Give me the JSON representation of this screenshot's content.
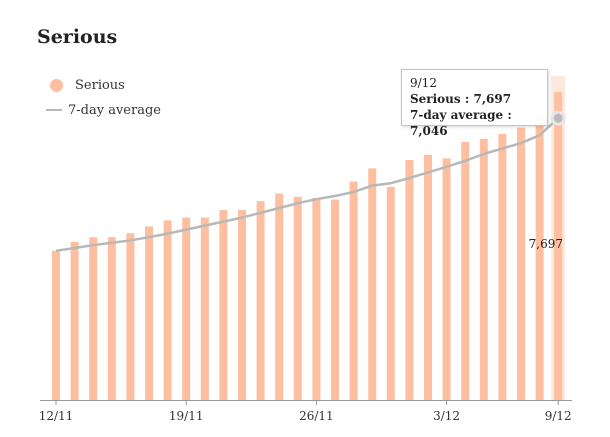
{
  "title": "Serious",
  "legend": {
    "series_label": "Serious",
    "avg_label": "7-day average"
  },
  "colors": {
    "bar": "#fdbf9f",
    "bar_highlight_band": "#fbe9dd",
    "avg_line": "#b8b8b8",
    "axis": "#999999",
    "tooltip_border": "#f2b594"
  },
  "tooltip": {
    "date": "9/12",
    "serious_label": "Serious",
    "serious_value": "7,697",
    "avg_label": "7-day average",
    "avg_value": "7,046"
  },
  "end_label": "7,697",
  "chart_data": {
    "type": "bar",
    "categories": [
      "12/11",
      "13/11",
      "14/11",
      "15/11",
      "16/11",
      "17/11",
      "18/11",
      "19/11",
      "20/11",
      "21/11",
      "22/11",
      "23/11",
      "24/11",
      "25/11",
      "26/11",
      "27/11",
      "28/11",
      "29/11",
      "30/11",
      "1/12",
      "2/12",
      "3/12",
      "4/12",
      "5/12",
      "6/12",
      "7/12",
      "8/12",
      "9/12"
    ],
    "x_tick_labels": [
      "12/11",
      "19/11",
      "26/11",
      "3/12",
      "9/12"
    ],
    "x_tick_indices": [
      0,
      7,
      14,
      21,
      27
    ],
    "series": [
      {
        "name": "Serious",
        "type": "bar",
        "values": [
          3730,
          3950,
          4070,
          4070,
          4170,
          4340,
          4490,
          4560,
          4560,
          4750,
          4750,
          4970,
          5160,
          5080,
          5050,
          5010,
          5460,
          5790,
          5330,
          6000,
          6130,
          6040,
          6450,
          6530,
          6650,
          6810,
          7130,
          7697
        ]
      },
      {
        "name": "7-day average",
        "type": "line",
        "values": [
          3730,
          3800,
          3870,
          3930,
          3990,
          4070,
          4160,
          4260,
          4360,
          4460,
          4560,
          4680,
          4800,
          4920,
          5020,
          5100,
          5200,
          5360,
          5420,
          5550,
          5690,
          5830,
          5980,
          6150,
          6290,
          6420,
          6620,
          7046
        ]
      }
    ],
    "ylim": [
      0,
      8000
    ],
    "grid": false,
    "legend_position": "top-left"
  }
}
